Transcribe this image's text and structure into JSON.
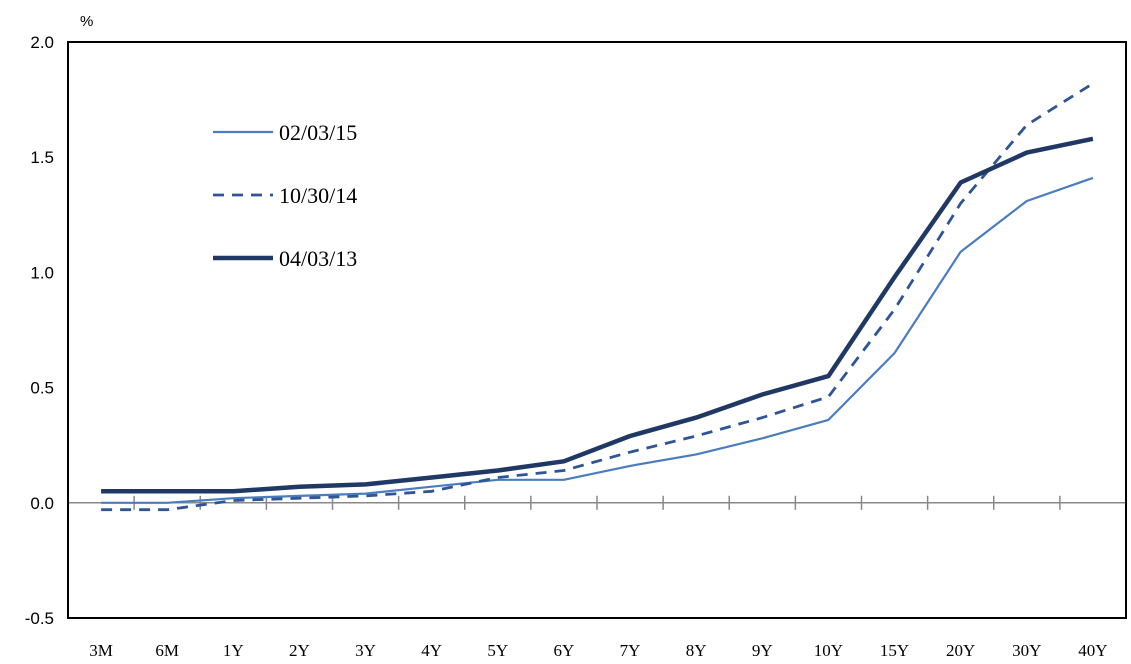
{
  "chart_data": {
    "type": "line",
    "unit_label": "%",
    "title": "",
    "xlabel": "",
    "ylabel": "",
    "categories": [
      "3M",
      "6M",
      "1Y",
      "2Y",
      "3Y",
      "4Y",
      "5Y",
      "6Y",
      "7Y",
      "8Y",
      "9Y",
      "10Y",
      "15Y",
      "20Y",
      "30Y",
      "40Y"
    ],
    "ylim": [
      -0.5,
      2.0
    ],
    "yticks": [
      -0.5,
      0.0,
      0.5,
      1.0,
      1.5,
      2.0
    ],
    "ytick_labels": [
      "-0.5",
      "0.0",
      "0.5",
      "1.0",
      "1.5",
      "2.0"
    ],
    "grid": false,
    "legend_position": "top-left",
    "series": [
      {
        "name": "02/03/15",
        "color": "#4a7cc0",
        "style": "solid-thin",
        "values": [
          0.0,
          0.0,
          0.02,
          0.03,
          0.04,
          0.07,
          0.1,
          0.1,
          0.16,
          0.21,
          0.28,
          0.36,
          0.65,
          1.09,
          1.31,
          1.41
        ]
      },
      {
        "name": "10/30/14",
        "color": "#2f5597",
        "style": "dashed",
        "values": [
          -0.03,
          -0.03,
          0.01,
          0.02,
          0.03,
          0.05,
          0.11,
          0.14,
          0.22,
          0.29,
          0.37,
          0.46,
          0.84,
          1.3,
          1.64,
          1.82
        ]
      },
      {
        "name": "04/03/13",
        "color": "#1f3864",
        "style": "solid-thick",
        "values": [
          0.05,
          0.05,
          0.05,
          0.07,
          0.08,
          0.11,
          0.14,
          0.18,
          0.29,
          0.37,
          0.47,
          0.55,
          0.98,
          1.39,
          1.52,
          1.58
        ]
      }
    ]
  }
}
